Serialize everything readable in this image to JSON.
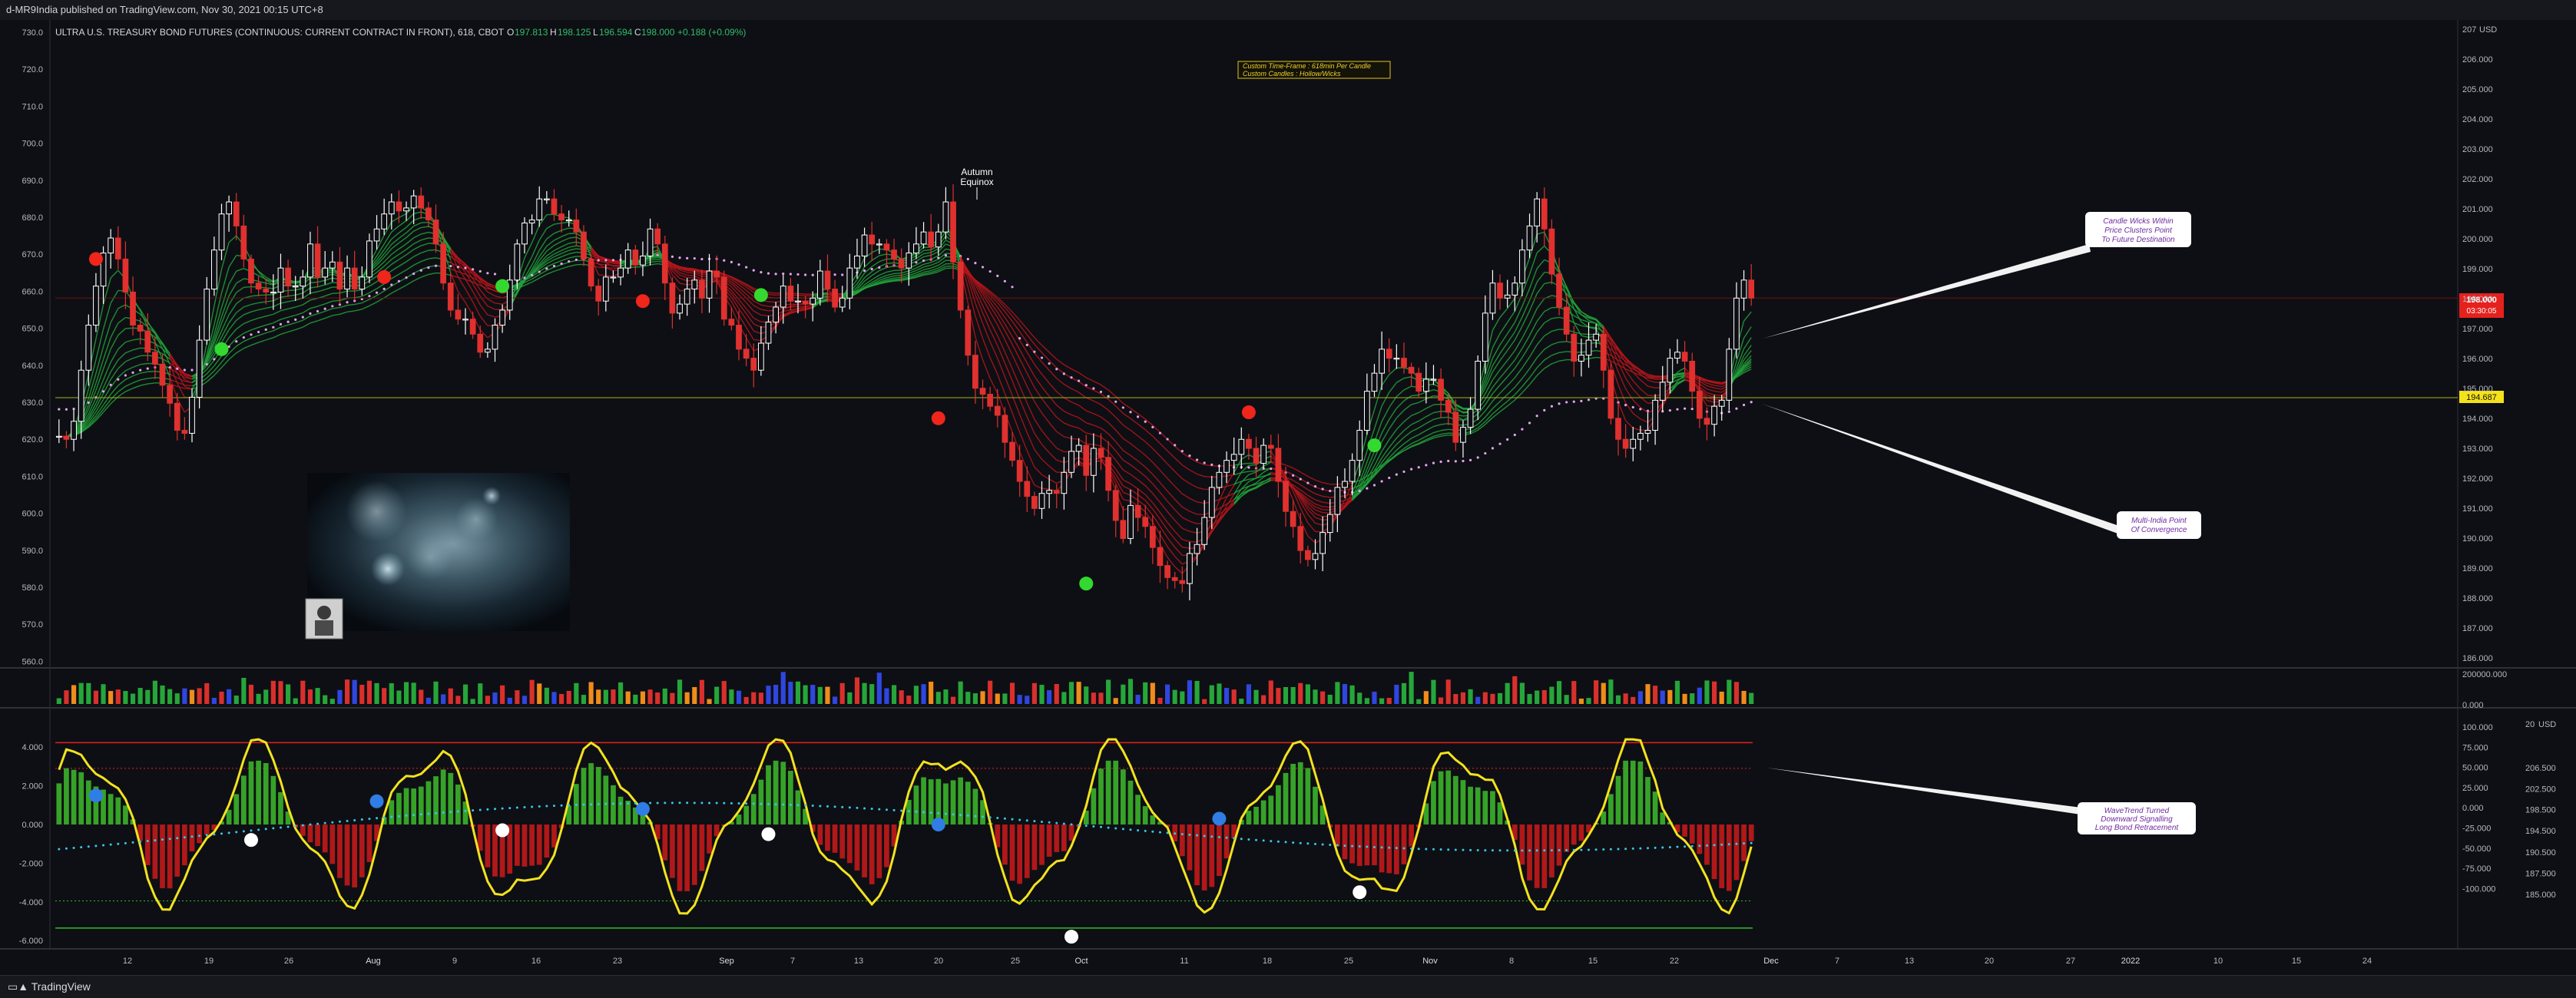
{
  "header": {
    "publisher": "d-MR9India published on TradingView.com, Nov 30, 2021 00:15 UTC+8"
  },
  "footer": {
    "brand": "TradingView"
  },
  "legend": {
    "symbol": "ULTRA U.S. TREASURY BOND FUTURES (CONTINUOUS: CURRENT CONTRACT IN FRONT), 618, CBOT",
    "o_label": "O",
    "o": "197.813",
    "h_label": "H",
    "h": "198.125",
    "l_label": "L",
    "l": "196.594",
    "c_label": "C",
    "c": "198.000",
    "chg": "+0.188 (+0.09%)"
  },
  "info_box": {
    "line1": "Custom Time-Frame : 618min Per Candle",
    "line2": "Custom Candles : Hollow/Wicks"
  },
  "event_label": {
    "line1": "Autumn",
    "line2": "Equinox"
  },
  "callouts": [
    {
      "lines": [
        "Candle Wicks Within",
        "Price Clusters Point",
        "To Future Destination"
      ]
    },
    {
      "lines": [
        "Multi-India Point",
        "Of Convergence"
      ]
    },
    {
      "lines": [
        "WaveTrend Turned",
        "Downward Signalling",
        "Long Bond Retracement"
      ]
    }
  ],
  "price_badges": {
    "last": "198.000",
    "countdown": "03:30:05",
    "level": "194.687"
  },
  "axes": {
    "left_main": [
      "730.0",
      "720.0",
      "710.0",
      "700.0",
      "690.0",
      "680.0",
      "670.0",
      "660.0",
      "650.0",
      "640.0",
      "630.0",
      "620.0",
      "610.0",
      "600.0",
      "590.0",
      "580.0",
      "570.0",
      "560.0"
    ],
    "right_main": [
      "207",
      "206.000",
      "205.000",
      "204.000",
      "203.000",
      "202.000",
      "201.000",
      "200.000",
      "199.000",
      "198.000",
      "197.000",
      "196.000",
      "195.000",
      "194.000",
      "193.000",
      "192.000",
      "191.000",
      "190.000",
      "189.000",
      "188.000",
      "187.000",
      "186.000"
    ],
    "usd": "USD",
    "volume": [
      "200000.000",
      "0.000"
    ],
    "left_osc": [
      "4.000",
      "2.000",
      "0.000",
      "-2.000",
      "-4.000",
      "-6.000"
    ],
    "right_osc_a": [
      "100.000",
      "75.000",
      "50.000",
      "25.000",
      "0.000",
      "-25.000",
      "-50.000",
      "-75.000",
      "-100.000"
    ],
    "right_osc_b": [
      "206.500",
      "202.500",
      "198.500",
      "194.500",
      "190.500",
      "187.500",
      "185.000"
    ],
    "right_osc_top": "20",
    "time": [
      "12",
      "19",
      "26",
      "Aug",
      "9",
      "16",
      "23",
      "Sep",
      "7",
      "13",
      "20",
      "25",
      "Oct",
      "11",
      "18",
      "25",
      "Nov",
      "8",
      "15",
      "22",
      "Dec",
      "7",
      "13",
      "20",
      "27",
      "2022",
      "10",
      "15",
      "24"
    ]
  },
  "chart_data": {
    "type": "candlestick",
    "x_unit": "bar index (618-min candles, Jul 2021 - Nov 29 2021)",
    "ylim": [
      186.0,
      207.0
    ],
    "close": [
      193.4,
      193.3,
      193.9,
      195.6,
      197.1,
      198.4,
      199.5,
      200.0,
      199.3,
      198.2,
      197.1,
      196.9,
      196.2,
      195.8,
      195.1,
      194.5,
      193.6,
      193.5,
      194.7,
      196.6,
      198.3,
      199.6,
      200.8,
      201.2,
      200.4,
      199.3,
      198.5,
      198.3,
      198.2,
      198.2,
      199.0,
      198.4,
      198.4,
      198.7,
      199.8,
      198.7,
      199.0,
      199.2,
      198.3,
      199.0,
      198.3,
      198.7,
      199.9,
      200.3,
      200.8,
      201.2,
      200.9,
      201.0,
      201.4,
      201.0,
      200.6,
      199.8,
      198.5,
      197.6,
      197.3,
      197.3,
      196.8,
      196.2,
      196.3,
      197.1,
      197.6,
      198.6,
      199.8,
      200.5,
      200.6,
      201.3,
      201.3,
      200.8,
      200.6,
      200.6,
      200.2,
      199.3,
      198.4,
      197.9,
      198.7,
      198.7,
      199.0,
      199.6,
      199.1,
      199.4,
      200.3,
      199.8,
      198.5,
      197.5,
      197.8,
      198.3,
      198.6,
      198.0,
      198.9,
      198.7,
      197.3,
      197.1,
      196.3,
      196.0,
      195.6,
      196.5,
      197.2,
      197.7,
      198.4,
      197.9,
      197.9,
      197.8,
      198.0,
      198.9,
      198.3,
      197.7,
      198.0,
      199.0,
      199.4,
      200.1,
      199.8,
      199.8,
      199.6,
      199.3,
      199.0,
      199.5,
      199.8,
      200.2,
      199.7,
      200.2,
      201.2,
      199.2,
      197.6,
      196.1,
      195.0,
      194.8,
      194.4,
      194.1,
      193.2,
      192.6,
      191.9,
      191.4,
      191.0,
      191.5,
      191.6,
      191.5,
      192.2,
      192.9,
      193.1,
      192.1,
      193.0,
      192.7,
      191.6,
      190.6,
      190.0,
      191.1,
      190.7,
      190.4,
      189.7,
      189.1,
      188.7,
      188.6,
      188.5,
      189.5,
      189.8,
      190.7,
      191.7,
      192.2,
      192.6,
      192.8,
      193.3,
      193.0,
      192.5,
      193.1,
      193.0,
      191.9,
      190.9,
      190.4,
      189.6,
      189.3,
      189.5,
      190.2,
      190.8,
      191.7,
      191.9,
      192.6,
      193.6,
      194.9,
      195.5,
      196.3,
      196.0,
      196.0,
      195.7,
      195.5,
      194.9,
      195.3,
      195.3,
      194.6,
      194.2,
      193.2,
      193.7,
      194.3,
      195.9,
      197.5,
      198.5,
      198.0,
      198.1,
      198.5,
      199.6,
      200.4,
      201.3,
      200.3,
      198.8,
      197.7,
      196.8,
      195.9,
      196.1,
      196.6,
      196.8,
      195.6,
      194.0,
      193.3,
      193.0,
      193.3,
      193.5,
      193.6,
      194.6,
      195.2,
      196.0,
      196.2,
      195.9,
      194.9,
      194.0,
      193.8,
      194.4,
      194.6,
      196.3,
      198.0,
      198.6,
      198.0
    ],
    "open_list_note": "open[i] = close[i-1]",
    "markers_note": "circular signal markers shown on price and oscillator panes"
  },
  "colors": {
    "bg": "#0e0f14",
    "up": "#ffffff",
    "down": "#e0312f",
    "ribbon_up": "#21a33a",
    "ribbon_down": "#b3161b",
    "ma_dots": "#e6a1f0",
    "wt_line": "#f2e21e",
    "wt_signal": "#37c8e6",
    "hist_up": "#3bb32a",
    "hist_down": "#c21a1a",
    "vol_green": "#26a63a",
    "vol_red": "#d9302c",
    "vol_orange": "#f08c1a",
    "vol_blue": "#3046e0",
    "level_line": "#a6b01f",
    "marker_red": "#f0251c",
    "marker_green": "#33d92f",
    "marker_blue": "#2f7de5",
    "marker_white": "#ffffff",
    "badge_red": "#e5211e",
    "badge_yellow": "#f4e21a",
    "callout_text": "#6f2aa0"
  }
}
